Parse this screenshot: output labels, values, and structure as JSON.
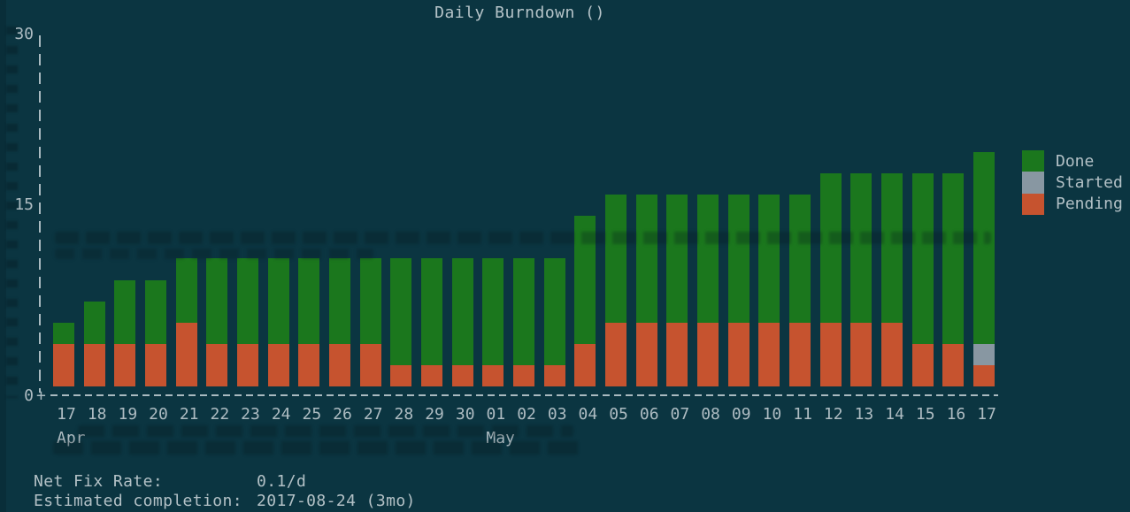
{
  "title": "Daily Burndown ()",
  "y_axis": {
    "ticks": [
      "30",
      "15",
      "0"
    ]
  },
  "x_axis": {
    "origin_glyph": "+",
    "month_labels": [
      {
        "label": "Apr",
        "index": 0
      },
      {
        "label": "May",
        "index": 14
      }
    ]
  },
  "legend": {
    "position": "right",
    "items": [
      {
        "label": "Done",
        "color": "#1b771d"
      },
      {
        "label": "Started",
        "color": "#8897a2"
      },
      {
        "label": "Pending",
        "color": "#c6532f"
      }
    ]
  },
  "stats": [
    {
      "label": "Net Fix Rate:",
      "value": "0.1/d"
    },
    {
      "label": "Estimated completion:",
      "value": "2017-08-24 (3mo)"
    }
  ],
  "chart_data": {
    "type": "bar",
    "stacked": true,
    "title": "Daily Burndown ()",
    "categories": [
      "17",
      "18",
      "19",
      "20",
      "21",
      "22",
      "23",
      "24",
      "25",
      "26",
      "27",
      "28",
      "29",
      "30",
      "01",
      "02",
      "03",
      "04",
      "05",
      "06",
      "07",
      "08",
      "09",
      "10",
      "11",
      "12",
      "13",
      "14",
      "15",
      "16",
      "17"
    ],
    "months": [
      {
        "name": "Apr",
        "first_category_index": 0
      },
      {
        "name": "May",
        "first_category_index": 14
      }
    ],
    "series": [
      {
        "name": "Pending",
        "color": "#c6532f",
        "values": [
          4,
          4,
          4,
          4,
          6,
          4,
          4,
          4,
          4,
          4,
          4,
          2,
          2,
          2,
          2,
          2,
          2,
          4,
          6,
          6,
          6,
          6,
          6,
          6,
          6,
          6,
          6,
          6,
          4,
          4,
          2
        ]
      },
      {
        "name": "Started",
        "color": "#8897a2",
        "values": [
          0,
          0,
          0,
          0,
          0,
          0,
          0,
          0,
          0,
          0,
          0,
          0,
          0,
          0,
          0,
          0,
          0,
          0,
          0,
          0,
          0,
          0,
          0,
          0,
          0,
          0,
          0,
          0,
          0,
          0,
          2
        ]
      },
      {
        "name": "Done",
        "color": "#1b771d",
        "values": [
          2,
          4,
          6,
          6,
          6,
          8,
          8,
          8,
          8,
          8,
          8,
          10,
          10,
          10,
          10,
          10,
          10,
          12,
          12,
          12,
          12,
          12,
          12,
          12,
          12,
          14,
          14,
          14,
          16,
          16,
          18
        ]
      }
    ],
    "totals": [
      6,
      8,
      10,
      10,
      12,
      12,
      12,
      12,
      12,
      12,
      12,
      12,
      12,
      12,
      12,
      12,
      12,
      16,
      18,
      18,
      18,
      18,
      18,
      18,
      18,
      20,
      20,
      20,
      20,
      20,
      22
    ],
    "ylim": [
      0,
      30
    ],
    "y_ticks": [
      0,
      15,
      30
    ],
    "grid": false,
    "legend_position": "right",
    "footer": {
      "net_fix_rate": "0.1/d",
      "estimated_completion": "2017-08-24 (3mo)"
    }
  }
}
